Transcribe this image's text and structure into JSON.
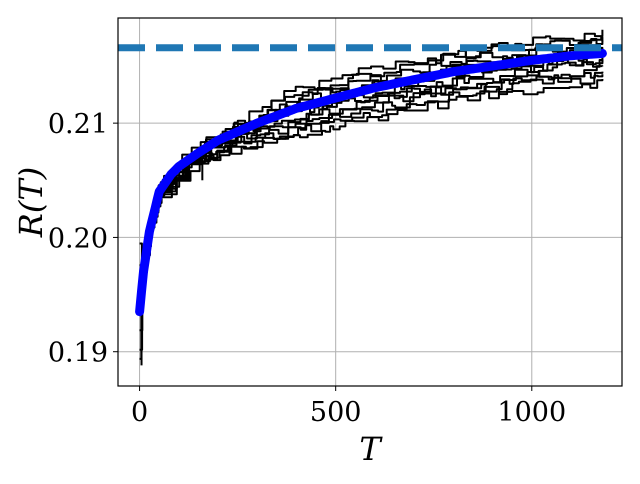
{
  "chart_data": {
    "type": "line",
    "title": "",
    "xlabel": "T",
    "ylabel": "R(T)",
    "xlim": [
      -55,
      1230
    ],
    "ylim": [
      0.187,
      0.2192
    ],
    "xticks": [
      0,
      500,
      1000
    ],
    "xtick_labels": [
      "0",
      "500",
      "1000"
    ],
    "yticks": [
      0.19,
      0.2,
      0.21
    ],
    "ytick_labels": [
      "0.19",
      "0.20",
      "0.21"
    ],
    "grid": true,
    "legend": "none",
    "reference_line": {
      "style": "dashed",
      "y": 0.2166,
      "color": "#1f77b4"
    },
    "mean_series": {
      "color": "#0000ff",
      "x": [
        0,
        10,
        25,
        50,
        80,
        100,
        150,
        200,
        300,
        400,
        500,
        600,
        700,
        800,
        900,
        1000,
        1100,
        1180
      ],
      "y": [
        0.1935,
        0.197,
        0.2005,
        0.204,
        0.2055,
        0.2062,
        0.2074,
        0.2085,
        0.21,
        0.2113,
        0.2122,
        0.2131,
        0.2138,
        0.2145,
        0.215,
        0.2155,
        0.2159,
        0.2161
      ]
    },
    "sample_runs": {
      "color": "#000000",
      "count": 12,
      "x_max": 1180,
      "y_spread_end": [
        0.2136,
        0.2178
      ],
      "y_start_range": [
        0.1885,
        0.1995
      ]
    }
  },
  "colors": {
    "background": "#ffffff",
    "grid": "#b0b0b0",
    "axes": "#000000"
  }
}
